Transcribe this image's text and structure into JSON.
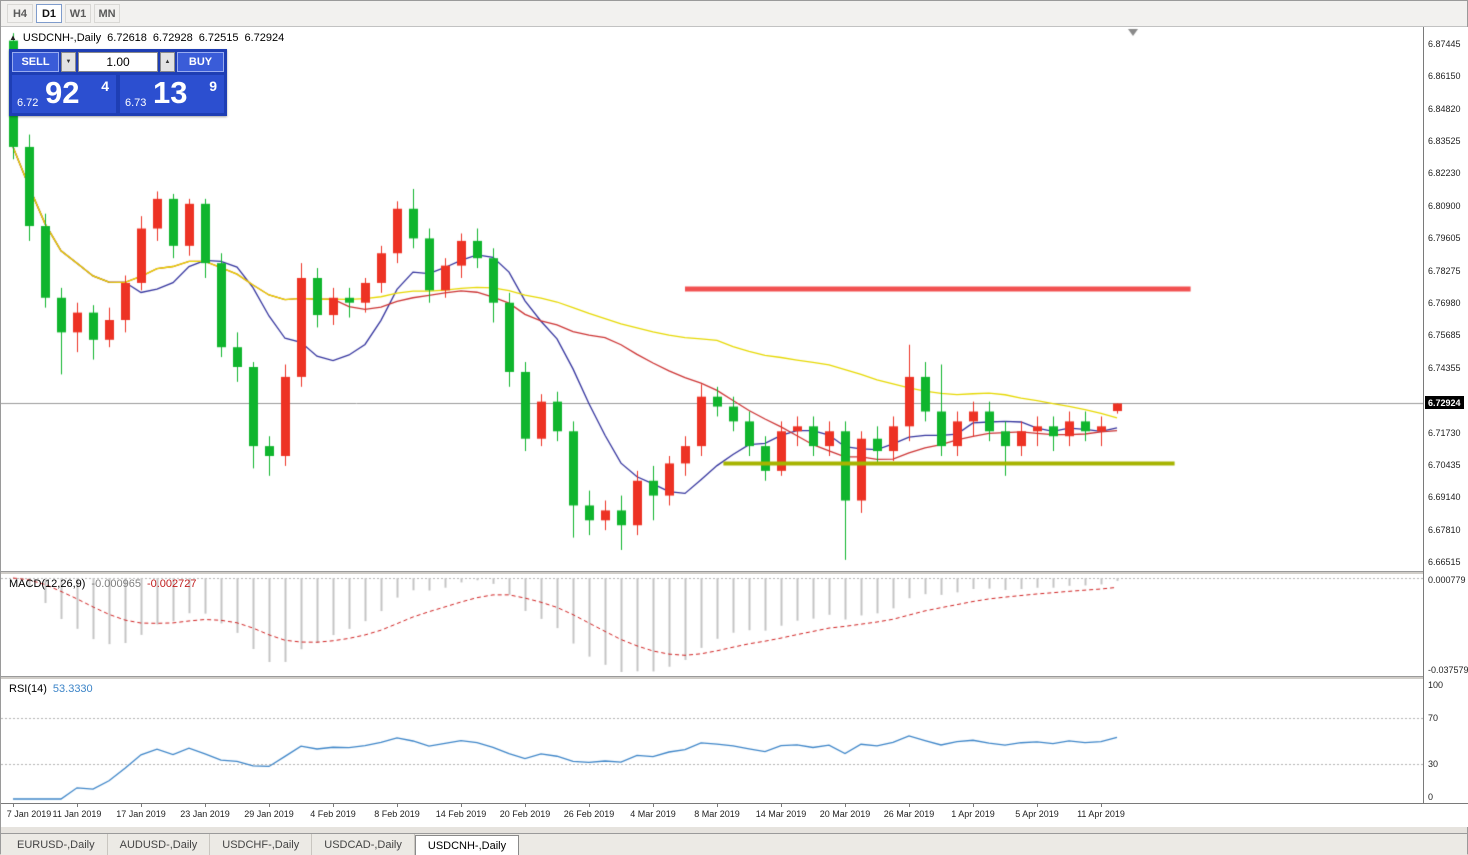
{
  "toolbar": {
    "timeframes": [
      {
        "label": "H4",
        "active": false
      },
      {
        "label": "D1",
        "active": true
      },
      {
        "label": "W1",
        "active": false
      },
      {
        "label": "MN",
        "active": false
      }
    ]
  },
  "info_line": {
    "symbol": "USDCNH-,Daily",
    "open": "6.72618",
    "high": "6.72928",
    "low": "6.72515",
    "close": "6.72924"
  },
  "icons": {
    "collapse_triangle": "▲",
    "volume_down": "▼",
    "volume_up": "▲"
  },
  "trade_panel": {
    "sell_label": "SELL",
    "buy_label": "BUY",
    "volume": "1.00",
    "sell_price_small": "6.72",
    "sell_price_big": "92",
    "sell_price_sup": "4",
    "buy_price_small": "6.73",
    "buy_price_big": "13",
    "buy_price_sup": "9"
  },
  "indicators": {
    "macd": {
      "label": "MACD(12,26,9)",
      "value_main": "-0.000965",
      "value_signal": "-0.002727",
      "axis_max": "0.000779",
      "axis_min": "-0.037579"
    },
    "rsi": {
      "label": "RSI(14)",
      "value": "53.3330",
      "levels": [
        "100",
        "70",
        "30",
        "0"
      ]
    }
  },
  "price_axis": {
    "labels": [
      "6.87445",
      "6.86150",
      "6.84820",
      "6.83525",
      "6.82230",
      "6.80900",
      "6.79605",
      "6.78275",
      "6.76980",
      "6.75685",
      "6.74355",
      "6.73060",
      "6.71730",
      "6.70435",
      "6.69140",
      "6.67810",
      "6.66515"
    ],
    "current": "6.72924"
  },
  "date_axis": {
    "step": 4,
    "labels": [
      "7 Jan 2019",
      "11 Jan 2019",
      "17 Jan 2019",
      "23 Jan 2019",
      "29 Jan 2019",
      "4 Feb 2019",
      "8 Feb 2019",
      "14 Feb 2019",
      "20 Feb 2019",
      "26 Feb 2019",
      "4 Mar 2019",
      "8 Mar 2019",
      "14 Mar 2019",
      "20 Mar 2019",
      "26 Mar 2019",
      "1 Apr 2019",
      "5 Apr 2019",
      "11 Apr 2019"
    ]
  },
  "bottom_tabs": [
    {
      "label": "EURUSD-,Daily",
      "active": false
    },
    {
      "label": "AUDUSD-,Daily",
      "active": false
    },
    {
      "label": "USDCHF-,Daily",
      "active": false
    },
    {
      "label": "USDCAD-,Daily",
      "active": false
    },
    {
      "label": "USDCNH-,Daily",
      "active": true
    }
  ],
  "chart_data": {
    "type": "candlestick",
    "symbol": "USDCNH",
    "timeframe": "Daily",
    "price_range": [
      6.6615,
      6.8815
    ],
    "current_price": 6.72924,
    "colors": {
      "bull": "#ed3224",
      "bear": "#0fb52d",
      "ma_fast": "#34349e",
      "ma_mid": "#cc3333",
      "ma_slow": "#e6d800",
      "macd_hist": "#c4c4c4",
      "macd_signal": "#cf2020",
      "rsi_line": "#3d85c8",
      "current_price_line": "#9a9a9a",
      "resistance": "#f25050",
      "support": "#a6b400",
      "level_line": "#b0b0b0"
    },
    "moving_averages": [
      {
        "period": 8,
        "color": "#34349e"
      },
      {
        "period": 21,
        "color": "#cc3333"
      },
      {
        "period": 45,
        "color": "#e6d800"
      }
    ],
    "hlines": [
      {
        "price": 6.7755,
        "color": "#f25050",
        "width": 5,
        "from_index": 42,
        "to_index": 73.6
      },
      {
        "price": 6.705,
        "color": "#a6b400",
        "width": 4,
        "from_index": 44.4,
        "to_index": 72.6
      }
    ],
    "macd": {
      "fast": 12,
      "slow": 26,
      "signal": 9,
      "range": [
        -0.037579,
        0.000779
      ]
    },
    "rsi": {
      "period": 14,
      "levels": [
        30,
        70
      ],
      "range": [
        0,
        100
      ]
    },
    "candles": [
      {
        "t": "7 Jan 2019",
        "o": 6.876,
        "h": 6.879,
        "l": 6.828,
        "c": 6.833
      },
      {
        "t": "8 Jan 2019",
        "o": 6.833,
        "h": 6.838,
        "l": 6.795,
        "c": 6.801
      },
      {
        "t": "9 Jan 2019",
        "o": 6.801,
        "h": 6.806,
        "l": 6.768,
        "c": 6.772
      },
      {
        "t": "10 Jan 2019",
        "o": 6.772,
        "h": 6.776,
        "l": 6.741,
        "c": 6.758
      },
      {
        "t": "11 Jan 2019",
        "o": 6.758,
        "h": 6.77,
        "l": 6.75,
        "c": 6.766
      },
      {
        "t": "14 Jan 2019",
        "o": 6.766,
        "h": 6.769,
        "l": 6.747,
        "c": 6.755
      },
      {
        "t": "15 Jan 2019",
        "o": 6.755,
        "h": 6.768,
        "l": 6.752,
        "c": 6.763
      },
      {
        "t": "16 Jan 2019",
        "o": 6.763,
        "h": 6.781,
        "l": 6.758,
        "c": 6.778
      },
      {
        "t": "17 Jan 2019",
        "o": 6.778,
        "h": 6.805,
        "l": 6.775,
        "c": 6.8
      },
      {
        "t": "18 Jan 2019",
        "o": 6.8,
        "h": 6.815,
        "l": 6.795,
        "c": 6.812
      },
      {
        "t": "21 Jan 2019",
        "o": 6.812,
        "h": 6.814,
        "l": 6.788,
        "c": 6.793
      },
      {
        "t": "22 Jan 2019",
        "o": 6.793,
        "h": 6.812,
        "l": 6.789,
        "c": 6.81
      },
      {
        "t": "23 Jan 2019",
        "o": 6.81,
        "h": 6.812,
        "l": 6.78,
        "c": 6.786
      },
      {
        "t": "24 Jan 2019",
        "o": 6.786,
        "h": 6.79,
        "l": 6.748,
        "c": 6.752
      },
      {
        "t": "25 Jan 2019",
        "o": 6.752,
        "h": 6.758,
        "l": 6.738,
        "c": 6.744
      },
      {
        "t": "28 Jan 2019",
        "o": 6.744,
        "h": 6.746,
        "l": 6.703,
        "c": 6.712
      },
      {
        "t": "29 Jan 2019",
        "o": 6.712,
        "h": 6.716,
        "l": 6.7,
        "c": 6.708
      },
      {
        "t": "30 Jan 2019",
        "o": 6.708,
        "h": 6.745,
        "l": 6.704,
        "c": 6.74
      },
      {
        "t": "31 Jan 2019",
        "o": 6.74,
        "h": 6.786,
        "l": 6.736,
        "c": 6.78
      },
      {
        "t": "1 Feb 2019",
        "o": 6.78,
        "h": 6.784,
        "l": 6.76,
        "c": 6.765
      },
      {
        "t": "4 Feb 2019",
        "o": 6.765,
        "h": 6.776,
        "l": 6.761,
        "c": 6.772
      },
      {
        "t": "5 Feb 2019",
        "o": 6.772,
        "h": 6.776,
        "l": 6.764,
        "c": 6.77
      },
      {
        "t": "6 Feb 2019",
        "o": 6.77,
        "h": 6.78,
        "l": 6.766,
        "c": 6.778
      },
      {
        "t": "7 Feb 2019",
        "o": 6.778,
        "h": 6.793,
        "l": 6.774,
        "c": 6.79
      },
      {
        "t": "8 Feb 2019",
        "o": 6.79,
        "h": 6.811,
        "l": 6.786,
        "c": 6.808
      },
      {
        "t": "11 Feb 2019",
        "o": 6.808,
        "h": 6.816,
        "l": 6.792,
        "c": 6.796
      },
      {
        "t": "12 Feb 2019",
        "o": 6.796,
        "h": 6.8,
        "l": 6.77,
        "c": 6.775
      },
      {
        "t": "13 Feb 2019",
        "o": 6.775,
        "h": 6.788,
        "l": 6.772,
        "c": 6.785
      },
      {
        "t": "14 Feb 2019",
        "o": 6.785,
        "h": 6.798,
        "l": 6.78,
        "c": 6.795
      },
      {
        "t": "15 Feb 2019",
        "o": 6.795,
        "h": 6.8,
        "l": 6.784,
        "c": 6.788
      },
      {
        "t": "18 Feb 2019",
        "o": 6.788,
        "h": 6.792,
        "l": 6.762,
        "c": 6.77
      },
      {
        "t": "19 Feb 2019",
        "o": 6.77,
        "h": 6.774,
        "l": 6.736,
        "c": 6.742
      },
      {
        "t": "20 Feb 2019",
        "o": 6.742,
        "h": 6.746,
        "l": 6.71,
        "c": 6.715
      },
      {
        "t": "21 Feb 2019",
        "o": 6.715,
        "h": 6.733,
        "l": 6.712,
        "c": 6.73
      },
      {
        "t": "22 Feb 2019",
        "o": 6.73,
        "h": 6.734,
        "l": 6.714,
        "c": 6.718
      },
      {
        "t": "25 Feb 2019",
        "o": 6.718,
        "h": 6.722,
        "l": 6.675,
        "c": 6.688
      },
      {
        "t": "26 Feb 2019",
        "o": 6.688,
        "h": 6.694,
        "l": 6.676,
        "c": 6.682
      },
      {
        "t": "27 Feb 2019",
        "o": 6.682,
        "h": 6.69,
        "l": 6.678,
        "c": 6.686
      },
      {
        "t": "28 Feb 2019",
        "o": 6.686,
        "h": 6.692,
        "l": 6.67,
        "c": 6.68
      },
      {
        "t": "1 Mar 2019",
        "o": 6.68,
        "h": 6.702,
        "l": 6.676,
        "c": 6.698
      },
      {
        "t": "4 Mar 2019",
        "o": 6.698,
        "h": 6.704,
        "l": 6.682,
        "c": 6.692
      },
      {
        "t": "5 Mar 2019",
        "o": 6.692,
        "h": 6.708,
        "l": 6.688,
        "c": 6.705
      },
      {
        "t": "6 Mar 2019",
        "o": 6.705,
        "h": 6.716,
        "l": 6.7,
        "c": 6.712
      },
      {
        "t": "7 Mar 2019",
        "o": 6.712,
        "h": 6.737,
        "l": 6.708,
        "c": 6.732
      },
      {
        "t": "8 Mar 2019",
        "o": 6.732,
        "h": 6.736,
        "l": 6.724,
        "c": 6.728
      },
      {
        "t": "11 Mar 2019",
        "o": 6.728,
        "h": 6.732,
        "l": 6.718,
        "c": 6.722
      },
      {
        "t": "12 Mar 2019",
        "o": 6.722,
        "h": 6.726,
        "l": 6.708,
        "c": 6.712
      },
      {
        "t": "13 Mar 2019",
        "o": 6.712,
        "h": 6.716,
        "l": 6.698,
        "c": 6.702
      },
      {
        "t": "14 Mar 2019",
        "o": 6.702,
        "h": 6.722,
        "l": 6.7,
        "c": 6.718
      },
      {
        "t": "15 Mar 2019",
        "o": 6.718,
        "h": 6.724,
        "l": 6.712,
        "c": 6.72
      },
      {
        "t": "18 Mar 2019",
        "o": 6.72,
        "h": 6.724,
        "l": 6.708,
        "c": 6.712
      },
      {
        "t": "19 Mar 2019",
        "o": 6.712,
        "h": 6.722,
        "l": 6.708,
        "c": 6.718
      },
      {
        "t": "20 Mar 2019",
        "o": 6.718,
        "h": 6.722,
        "l": 6.666,
        "c": 6.69
      },
      {
        "t": "21 Mar 2019",
        "o": 6.69,
        "h": 6.718,
        "l": 6.685,
        "c": 6.715
      },
      {
        "t": "22 Mar 2019",
        "o": 6.715,
        "h": 6.72,
        "l": 6.705,
        "c": 6.71
      },
      {
        "t": "25 Mar 2019",
        "o": 6.71,
        "h": 6.724,
        "l": 6.706,
        "c": 6.72
      },
      {
        "t": "26 Mar 2019",
        "o": 6.72,
        "h": 6.753,
        "l": 6.714,
        "c": 6.74
      },
      {
        "t": "27 Mar 2019",
        "o": 6.74,
        "h": 6.746,
        "l": 6.722,
        "c": 6.726
      },
      {
        "t": "28 Mar 2019",
        "o": 6.726,
        "h": 6.745,
        "l": 6.708,
        "c": 6.712
      },
      {
        "t": "29 Mar 2019",
        "o": 6.712,
        "h": 6.726,
        "l": 6.708,
        "c": 6.722
      },
      {
        "t": "1 Apr 2019",
        "o": 6.722,
        "h": 6.73,
        "l": 6.716,
        "c": 6.726
      },
      {
        "t": "2 Apr 2019",
        "o": 6.726,
        "h": 6.73,
        "l": 6.714,
        "c": 6.718
      },
      {
        "t": "3 Apr 2019",
        "o": 6.718,
        "h": 6.722,
        "l": 6.7,
        "c": 6.712
      },
      {
        "t": "4 Apr 2019",
        "o": 6.712,
        "h": 6.722,
        "l": 6.708,
        "c": 6.718
      },
      {
        "t": "5 Apr 2019",
        "o": 6.718,
        "h": 6.724,
        "l": 6.712,
        "c": 6.72
      },
      {
        "t": "8 Apr 2019",
        "o": 6.72,
        "h": 6.724,
        "l": 6.71,
        "c": 6.716
      },
      {
        "t": "9 Apr 2019",
        "o": 6.716,
        "h": 6.726,
        "l": 6.712,
        "c": 6.722
      },
      {
        "t": "10 Apr 2019",
        "o": 6.722,
        "h": 6.726,
        "l": 6.714,
        "c": 6.718
      },
      {
        "t": "11 Apr 2019",
        "o": 6.718,
        "h": 6.724,
        "l": 6.712,
        "c": 6.72
      },
      {
        "t": "12 Apr 2019",
        "o": 6.72618,
        "h": 6.72928,
        "l": 6.72515,
        "c": 6.72924
      }
    ]
  }
}
